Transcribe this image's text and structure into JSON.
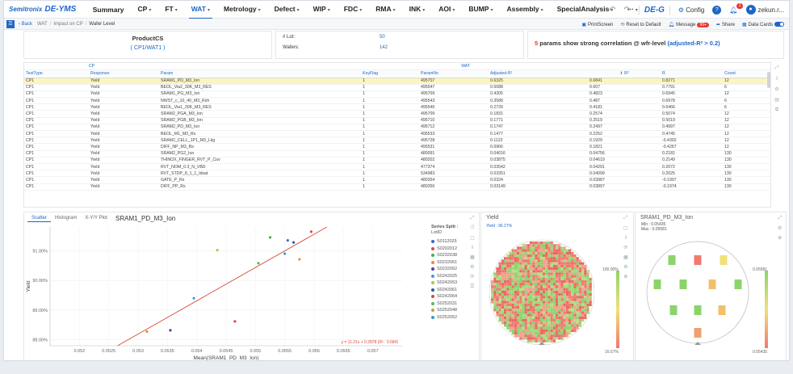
{
  "brand": {
    "logo": "Semitronix",
    "product": "DE-YMS",
    "right_product": "DE-G"
  },
  "menu": [
    {
      "label": "Summary",
      "caret": false,
      "active": false
    },
    {
      "label": "CP",
      "caret": true,
      "active": false
    },
    {
      "label": "FT",
      "caret": true,
      "active": false
    },
    {
      "label": "WAT",
      "caret": true,
      "active": true
    },
    {
      "label": "Metrology",
      "caret": true,
      "active": false
    },
    {
      "label": "Defect",
      "caret": true,
      "active": false
    },
    {
      "label": "WIP",
      "caret": true,
      "active": false
    },
    {
      "label": "FDC",
      "caret": true,
      "active": false
    },
    {
      "label": "RMA",
      "caret": true,
      "active": false
    },
    {
      "label": "INK",
      "caret": true,
      "active": false
    },
    {
      "label": "AOI",
      "caret": true,
      "active": false
    },
    {
      "label": "BUMP",
      "caret": true,
      "active": false
    },
    {
      "label": "Assembly",
      "caret": true,
      "active": false
    },
    {
      "label": "SpecialAnalysis",
      "caret": true,
      "active": false
    },
    {
      "label": "···",
      "caret": true,
      "active": false
    }
  ],
  "nav_right": {
    "config": "Config",
    "notifications": "1",
    "user": "zekun.r..."
  },
  "breadcrumb": {
    "back": "Back",
    "items": [
      "WAT",
      "Impact on CP",
      "Wafer Level"
    ]
  },
  "toolbar": {
    "printscreen": "PrintScreen",
    "reset": "Reset to Default",
    "message": "Message",
    "message_count": "99+",
    "share": "Share",
    "data_cards": "Data Cards"
  },
  "summary": {
    "product_title": "ProductCS",
    "product_sub": "( CP1/WAT1 )",
    "lot_label": "# Lot:",
    "lot_value": "50",
    "wafer_label": "Wafers:",
    "wafer_value": "142",
    "msg_count": "5",
    "msg_text": " params show strong correlation @ wfr-level ",
    "msg_hl": "(adjusted-R² > 0.2)"
  },
  "table": {
    "group_cp": "CP",
    "group_wat": "WAT",
    "headers": [
      "TestType",
      "Response",
      "Param",
      "KeyFlag",
      "ParamNo",
      "Adjusted-R²",
      "R²",
      "R",
      "Count"
    ],
    "rows": [
      [
        "CP1",
        "Yield",
        "SRAM1_PD_M3_Ion",
        "1",
        "495707",
        "0.6325",
        "0.6841",
        "0.8271",
        "12"
      ],
      [
        "CP1",
        "Yield",
        "BEOL_Via2_30K_M3_RES",
        "1",
        "495547",
        "0.5088",
        "0.607",
        "0.7791",
        "6"
      ],
      [
        "CP1",
        "Yield",
        "SRAM1_PG_M3_Ion",
        "1",
        "495709",
        "0.4305",
        "0.4823",
        "0.6945",
        "12"
      ],
      [
        "CP1",
        "Yield",
        "NWST_c_10_40_M3_Rsh",
        "1",
        "495543",
        "0.3588",
        "0.487",
        "0.6978",
        "6"
      ],
      [
        "CP1",
        "Yield",
        "BEOL_Via1_30K_M3_RES",
        "1",
        "495546",
        "0.2726",
        "0.4181",
        "0.6466",
        "6"
      ],
      [
        "CP1",
        "Yield",
        "SRAM2_PGA_M3_Ion",
        "1",
        "495709",
        "0.1831",
        "0.2574",
        "0.5074",
        "12"
      ],
      [
        "CP1",
        "Yield",
        "SRAM2_PGB_M3_Ion",
        "1",
        "495710",
        "0.1771",
        "0.2519",
        "0.5019",
        "12"
      ],
      [
        "CP1",
        "Yield",
        "SRAM2_PD_M3_Ion",
        "1",
        "495712",
        "0.1747",
        "0.2497",
        "0.4997",
        "12"
      ],
      [
        "CP1",
        "Yield",
        "BEOL_M1_M3_Rs",
        "1",
        "495533",
        "0.1477",
        "0.2252",
        "0.4745",
        "12"
      ],
      [
        "CP1",
        "Yield",
        "SRAM2_CELL_1P1_M3_Lkg",
        "1",
        "495728",
        "0.1122",
        "0.1929",
        "-0.4392",
        "12"
      ],
      [
        "CP1",
        "Yield",
        "DIFF_NP_M3_Rs",
        "1",
        "495531",
        "0.0966",
        "0.1821",
        "-0.4267",
        "12"
      ],
      [
        "CP1",
        "Yield",
        "SRAM2_PG2_Ion",
        "1",
        "480091",
        "0.04016",
        "0.04756",
        "0.2181",
        "130"
      ],
      [
        "CP1",
        "Yield",
        "THINOX_FINGER_RVT_P_Cov",
        "1",
        "480202",
        "0.03875",
        "0.04619",
        "0.2149",
        "130"
      ],
      [
        "CP1",
        "Yield",
        "RVT_NOM_0.3_N_VBD",
        "1",
        "477374",
        "0.03542",
        "0.04291",
        "0.2072",
        "130"
      ],
      [
        "CP1",
        "Yield",
        "RVT_STDP_8_1_1_Idsat",
        "1",
        "534983",
        "0.03351",
        "0.04099",
        "0.2025",
        "130"
      ],
      [
        "CP1",
        "Yield",
        "GATE_P_Rs",
        "1",
        "480354",
        "0.0324",
        "0.03987",
        "-0.1997",
        "130"
      ],
      [
        "CP1",
        "Yield",
        "DIFF_PP_Rs",
        "1",
        "480356",
        "0.03149",
        "0.03897",
        "-0.1974",
        "130"
      ]
    ]
  },
  "scatter": {
    "tabs": [
      "Scatter",
      "Histogram",
      "X-Y/Y Plot"
    ],
    "title": "SRAM1_PD_M3_Ion",
    "legend_title": "Series Split :",
    "legend_sub": "LotID",
    "fit_label": "y = 11.21x + 0.2878 (R² : 0.684)",
    "xlabel": "Mean(SRAM1_PD_M3_Ion)",
    "ylabel": "Yield"
  },
  "chart_data": {
    "type": "scatter",
    "xlabel": "Mean(SRAM1_PD_M3_Ion)",
    "ylabel": "Yield",
    "xlim": [
      0.0515,
      0.0575
    ],
    "ylim": [
      0.878,
      0.918
    ],
    "x_ticks": [
      "0.052",
      "0.0525",
      "0.053",
      "0.0535",
      "0.054",
      "0.0545",
      "0.055",
      "0.0555",
      "0.056",
      "0.0565",
      "0.057"
    ],
    "y_ticks": [
      "88.00%",
      "89.00%",
      "90.00%",
      "91.00%"
    ],
    "y_tick_values": [
      0.88,
      0.89,
      0.9,
      0.91
    ],
    "fit": {
      "slope": 11.21,
      "intercept": 0.2878
    },
    "series": [
      {
        "name": "S0112025",
        "color": "#3a66c8",
        "x": [
          0.05555
        ],
        "y": [
          0.9135
        ]
      },
      {
        "name": "S0202012",
        "color": "#e04848",
        "x": [
          0.05595
        ],
        "y": [
          0.9164
        ]
      },
      {
        "name": "S0232038",
        "color": "#4caf50",
        "x": [
          0.05525
        ],
        "y": [
          0.9145
        ]
      },
      {
        "name": "S0232061",
        "color": "#e88a3a",
        "x": [
          0.05575
        ],
        "y": [
          0.9071
        ]
      },
      {
        "name": "S0232062",
        "color": "#5a3fa0",
        "x": [
          0.05355
        ],
        "y": [
          0.8832
        ]
      },
      {
        "name": "S0242025",
        "color": "#3a9fd8",
        "x": [
          0.05395
        ],
        "y": [
          0.894
        ]
      },
      {
        "name": "S0242053",
        "color": "#a6c93a",
        "x": [
          0.05435
        ],
        "y": [
          0.9102
        ]
      },
      {
        "name": "S0242061",
        "color": "#2b5aa8",
        "x": [
          0.05565
        ],
        "y": [
          0.9128
        ]
      },
      {
        "name": "S0242064",
        "color": "#d84848",
        "x": [
          0.05465
        ],
        "y": [
          0.8862
        ]
      },
      {
        "name": "S0252031",
        "color": "#58b858",
        "x": [
          0.05505
        ],
        "y": [
          0.9058
        ]
      },
      {
        "name": "S0252048",
        "color": "#c8a03a",
        "x": [
          0.05315
        ],
        "y": [
          0.8828
        ]
      },
      {
        "name": "S0252052",
        "color": "#38a0b8",
        "x": [
          0.0555
        ],
        "y": [
          0.909
        ]
      }
    ]
  },
  "wafer_yield": {
    "title": "Yield",
    "sub": "Yield : 96.27%",
    "cb_max": "100.00%",
    "cb_min": "16.67%"
  },
  "wafer_sram": {
    "title": "SRAM1_PD_M3_Ion",
    "min": "Min : 0.05435",
    "max": "Max : 0.05581",
    "cb_max": "0.05581",
    "cb_min": "0.05435"
  }
}
